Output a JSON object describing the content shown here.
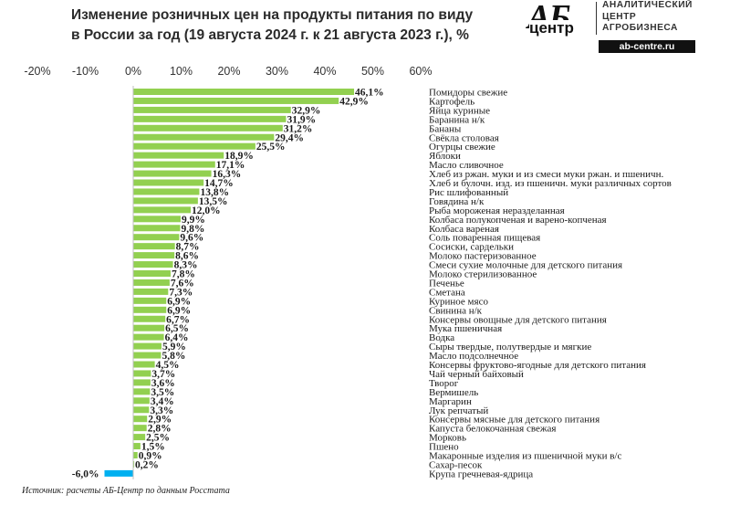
{
  "header": {
    "title_line1": "Изменение розничных цен на продукты питания по виду",
    "title_line2": "в России за год (19 августа 2024 г. к 21 августа 2023 г.), %"
  },
  "logo": {
    "mark": "АБ",
    "mark_sub": "центр",
    "line1": "АНАЛИТИЧЕСКИЙ",
    "line2": "ЦЕНТР",
    "line3": "АГРОБИЗНЕСА",
    "url": "ab-centre.ru"
  },
  "source": "Источник: расчеты АБ-Центр по данным Росстата",
  "colors": {
    "positive": "#92D050",
    "negative": "#00B0F0"
  },
  "chart_data": {
    "type": "bar",
    "orientation": "horizontal",
    "xlim": [
      -20,
      60
    ],
    "x_ticks": [
      "-20%",
      "-10%",
      "0%",
      "10%",
      "20%",
      "30%",
      "40%",
      "50%",
      "60%"
    ],
    "x_tick_values": [
      -20,
      -10,
      0,
      10,
      20,
      30,
      40,
      50,
      60
    ],
    "grid": false,
    "categories": [
      "Помидоры свежие",
      "Картофель",
      "Яйца куриные",
      "Баранина н/к",
      "Бананы",
      "Свёкла столовая",
      "Огурцы свежие",
      "Яблоки",
      "Масло сливочное",
      "Хлеб из ржан. муки и из смеси муки ржан. и пшеничн.",
      "Хлеб и булочн. изд. из пшеничн. муки различных сортов",
      "Рис шлифованный",
      "Говядина н/к",
      "Рыба мороженая неразделанная",
      "Колбаса полукопченая и варено-копченая",
      "Колбаса вареная",
      "Соль поваренная пищевая",
      "Сосиски, сардельки",
      "Молоко пастеризованное",
      "Смеси сухие молочные для детского питания",
      "Молоко стерилизованное",
      "Печенье",
      "Сметана",
      "Куриное мясо",
      "Свинина н/к",
      "Консервы овощные для детского питания",
      "Мука пшеничная",
      "Водка",
      "Сыры твердые, полутвердые и мягкие",
      "Масло подсолнечное",
      "Консервы фруктово-ягодные для детского питания",
      "Чай черный байховый",
      "Творог",
      "Вермишель",
      "Маргарин",
      "Лук репчатый",
      "Консервы мясные для детского питания",
      "Капуста белокочанная свежая",
      "Морковь",
      "Пшено",
      "Макаронные изделия из пшеничной муки в/с",
      "Сахар-песок",
      "Крупа гречневая-ядрица"
    ],
    "values": [
      46.1,
      42.9,
      32.9,
      31.9,
      31.2,
      29.4,
      25.5,
      18.9,
      17.1,
      16.3,
      14.7,
      13.8,
      13.5,
      12.0,
      9.9,
      9.8,
      9.6,
      8.7,
      8.6,
      8.3,
      7.8,
      7.6,
      7.3,
      6.9,
      6.9,
      6.7,
      6.5,
      6.4,
      5.9,
      5.8,
      4.5,
      3.7,
      3.6,
      3.5,
      3.4,
      3.3,
      2.9,
      2.8,
      2.5,
      1.5,
      0.9,
      0.2,
      -6.0
    ],
    "value_labels": [
      "46,1%",
      "42,9%",
      "32,9%",
      "31,9%",
      "31,2%",
      "29,4%",
      "25,5%",
      "18,9%",
      "17,1%",
      "16,3%",
      "14,7%",
      "13,8%",
      "13,5%",
      "12,0%",
      "9,9%",
      "9,8%",
      "9,6%",
      "8,7%",
      "8,6%",
      "8,3%",
      "7,8%",
      "7,6%",
      "7,3%",
      "6,9%",
      "6,9%",
      "6,7%",
      "6,5%",
      "6,4%",
      "5,9%",
      "5,8%",
      "4,5%",
      "3,7%",
      "3,6%",
      "3,5%",
      "3,4%",
      "3,3%",
      "2,9%",
      "2,8%",
      "2,5%",
      "1,5%",
      "0,9%",
      "0,2%",
      "-6,0%"
    ]
  }
}
